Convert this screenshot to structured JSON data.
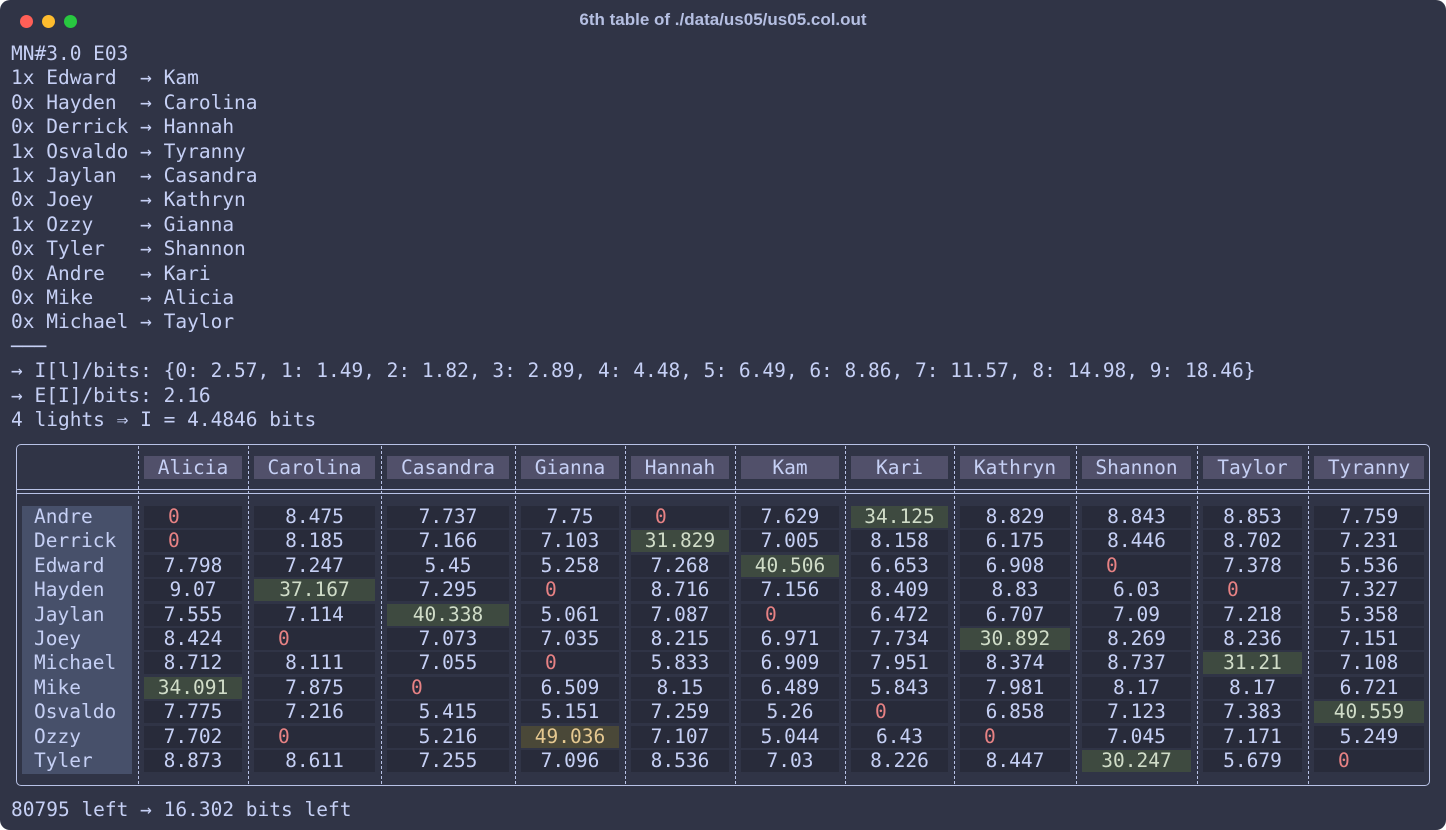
{
  "window": {
    "title": "6th table of ./data/us05/us05.col.out"
  },
  "lines": [
    "MN#3.0 E03",
    "1x Edward  → Kam",
    "0x Hayden  → Carolina",
    "0x Derrick → Hannah",
    "1x Osvaldo → Tyranny",
    "1x Jaylan  → Casandra",
    "0x Joey    → Kathryn",
    "1x Ozzy    → Gianna",
    "0x Tyler   → Shannon",
    "0x Andre   → Kari",
    "0x Mike    → Alicia",
    "0x Michael → Taylor",
    "───",
    "→ I[l]/bits: {0: 2.57, 1: 1.49, 2: 1.82, 3: 2.89, 4: 4.48, 5: 6.49, 6: 8.86, 7: 11.57, 8: 14.98, 9: 18.46}",
    "→ E[I]/bits: 2.16",
    "4 lights ⇒ I = 4.4846 bits"
  ],
  "table": {
    "columns": [
      "Alicia",
      "Carolina",
      "Casandra",
      "Gianna",
      "Hannah",
      "Kam",
      "Kari",
      "Kathryn",
      "Shannon",
      "Taylor",
      "Tyranny"
    ],
    "rows": [
      {
        "name": "Andre",
        "values": [
          "0",
          "8.475",
          "7.737",
          "7.75",
          "0",
          "7.629",
          "34.125",
          "8.829",
          "8.843",
          "8.853",
          "7.759"
        ]
      },
      {
        "name": "Derrick",
        "values": [
          "0",
          "8.185",
          "7.166",
          "7.103",
          "31.829",
          "7.005",
          "8.158",
          "6.175",
          "8.446",
          "8.702",
          "7.231"
        ]
      },
      {
        "name": "Edward",
        "values": [
          "7.798",
          "7.247",
          "5.45",
          "5.258",
          "7.268",
          "40.506",
          "6.653",
          "6.908",
          "0",
          "7.378",
          "5.536"
        ]
      },
      {
        "name": "Hayden",
        "values": [
          "9.07",
          "37.167",
          "7.295",
          "0",
          "8.716",
          "7.156",
          "8.409",
          "8.83",
          "6.03",
          "0",
          "7.327"
        ]
      },
      {
        "name": "Jaylan",
        "values": [
          "7.555",
          "7.114",
          "40.338",
          "5.061",
          "7.087",
          "0",
          "6.472",
          "6.707",
          "7.09",
          "7.218",
          "5.358"
        ]
      },
      {
        "name": "Joey",
        "values": [
          "8.424",
          "0",
          "7.073",
          "7.035",
          "8.215",
          "6.971",
          "7.734",
          "30.892",
          "8.269",
          "8.236",
          "7.151"
        ]
      },
      {
        "name": "Michael",
        "values": [
          "8.712",
          "8.111",
          "7.055",
          "0",
          "5.833",
          "6.909",
          "7.951",
          "8.374",
          "8.737",
          "31.21",
          "7.108"
        ]
      },
      {
        "name": "Mike",
        "values": [
          "34.091",
          "7.875",
          "0",
          "6.509",
          "8.15",
          "6.489",
          "5.843",
          "7.981",
          "8.17",
          "8.17",
          "6.721"
        ]
      },
      {
        "name": "Osvaldo",
        "values": [
          "7.775",
          "7.216",
          "5.415",
          "5.151",
          "7.259",
          "5.26",
          "0",
          "6.858",
          "7.123",
          "7.383",
          "40.559"
        ]
      },
      {
        "name": "Ozzy",
        "values": [
          "7.702",
          "0",
          "5.216",
          "49.036",
          "7.107",
          "5.044",
          "6.43",
          "0",
          "7.045",
          "7.171",
          "5.249"
        ]
      },
      {
        "name": "Tyler",
        "values": [
          "8.873",
          "8.611",
          "7.255",
          "7.096",
          "8.536",
          "7.03",
          "8.226",
          "8.447",
          "30.247",
          "5.679",
          "0"
        ]
      }
    ]
  },
  "footer": "80795 left → 16.302 bits left"
}
